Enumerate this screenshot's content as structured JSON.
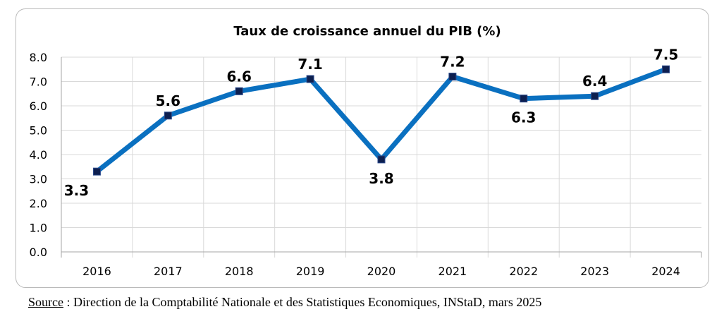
{
  "chart_data": {
    "type": "line",
    "title": "Taux de croissance annuel du PIB (%)",
    "xlabel": "",
    "ylabel": "",
    "categories": [
      "2016",
      "2017",
      "2018",
      "2019",
      "2020",
      "2021",
      "2022",
      "2023",
      "2024"
    ],
    "series": [
      {
        "name": "Taux de croissance annuel du PIB (%)",
        "values": [
          3.3,
          5.6,
          6.6,
          7.1,
          3.8,
          7.2,
          6.3,
          6.4,
          7.5
        ]
      }
    ],
    "data_labels": [
      "3.3",
      "5.6",
      "6.6",
      "7.1",
      "3.8",
      "7.2",
      "6.3",
      "6.4",
      "7.5"
    ],
    "ylim": [
      0,
      8
    ],
    "yticks": [
      "0.0",
      "1.0",
      "2.0",
      "3.0",
      "4.0",
      "5.0",
      "6.0",
      "7.0",
      "8.0"
    ],
    "grid": true,
    "legend": "none",
    "line_color": "#0a70c0",
    "marker_color": "#0d1f4f",
    "grid_color": "#d9d9d9"
  },
  "source": {
    "label": "Source",
    "separator": " : ",
    "text": "Direction de la Comptabilité Nationale et des Statistiques Economiques, INStaD, mars 2025"
  }
}
